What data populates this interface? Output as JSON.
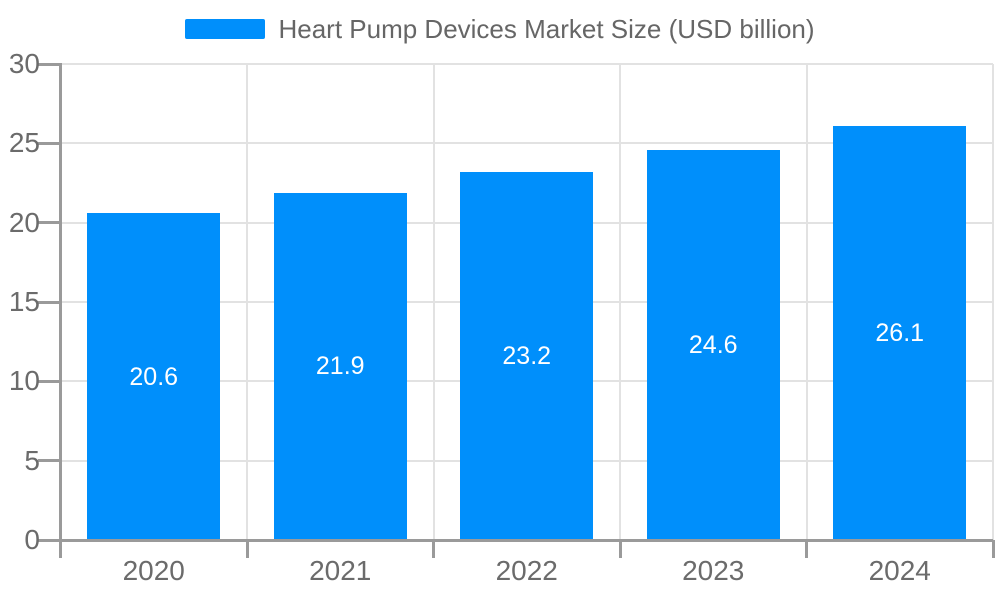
{
  "chart_data": {
    "type": "bar",
    "title": "",
    "xlabel": "",
    "ylabel": "",
    "categories": [
      "2020",
      "2021",
      "2022",
      "2023",
      "2024"
    ],
    "series": [
      {
        "name": "Heart Pump Devices Market Size (USD billion)",
        "values": [
          20.6,
          21.9,
          23.2,
          24.6,
          26.1
        ]
      }
    ],
    "data_labels": [
      "20.6",
      "21.9",
      "23.2",
      "24.6",
      "26.1"
    ],
    "ylim": [
      0,
      30
    ],
    "yticks": [
      0,
      5,
      10,
      15,
      20,
      25,
      30
    ],
    "grid": true,
    "legend_position": "top",
    "colors": {
      "bar": "#008FFB",
      "data_label": "#ffffff",
      "axis_text": "#6b6b6b",
      "legend_text": "#666666",
      "grid_line": "#e2e2e2",
      "axis_line": "#9a9a9a",
      "background": "#ffffff"
    }
  }
}
